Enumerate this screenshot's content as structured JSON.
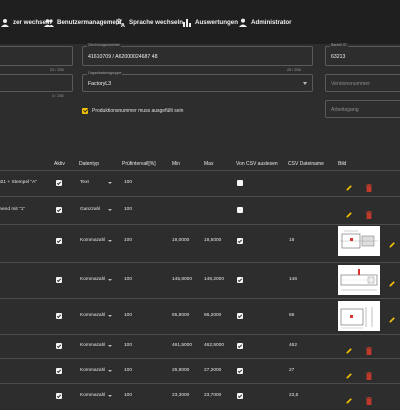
{
  "nav": {
    "items": [
      {
        "label": "zer wechseln",
        "icon": "user-swap-icon"
      },
      {
        "label": "Benutzermanagement",
        "icon": "users-icon"
      },
      {
        "label": "Sprache wechseln",
        "icon": "translate-icon"
      },
      {
        "label": "Auswertungen",
        "icon": "bar-chart-icon"
      },
      {
        "label": "Administrator",
        "icon": "person-icon"
      }
    ]
  },
  "form": {
    "left_counter_1": "22 / 255",
    "left_counter_2": "4 / 255",
    "drawing": {
      "label": "Zeichnungsnummer",
      "value": "41610709 / A62000024687 48",
      "counter": "25 / 255"
    },
    "group": {
      "label": "Organisationsgruppe",
      "value": "FactoryL3"
    },
    "bauteil": {
      "label": "Bauteil ID",
      "value": "63213"
    },
    "version": {
      "placeholder": "Versionsnummer"
    },
    "arbeitsgang": {
      "placeholder": "Arbeitsgang"
    },
    "production_check_label": "Produktionsnummer muss ausgefüllt sein"
  },
  "table": {
    "headers": {
      "aktiv": "Aktiv",
      "datentyp": "Datentyp",
      "interval": "Prüfintervall[%]",
      "min": "Min",
      "max": "Max",
      "csv": "Von CSV auslesen",
      "csvname": "CSV Dateiname",
      "bild": "Bild"
    },
    "rows": [
      {
        "name": "021 + Stempel \"A\"",
        "aktiv": true,
        "type": "Text",
        "interval": "100",
        "min": "",
        "max": "",
        "csv": false,
        "csvname": "",
        "image": false
      },
      {
        "name": "mend mit \"1\"",
        "aktiv": true,
        "type": "Ganzzahl",
        "interval": "100",
        "min": "",
        "max": "",
        "csv": false,
        "csvname": "",
        "image": false
      },
      {
        "name": "",
        "aktiv": true,
        "type": "Kommazahl",
        "interval": "100",
        "min": "18,0000",
        "max": "18,5000",
        "csv": true,
        "csvname": "18",
        "image": true
      },
      {
        "name": "",
        "aktiv": true,
        "type": "Kommazahl",
        "interval": "100",
        "min": "145,8000",
        "max": "146,2000",
        "csv": true,
        "csvname": "146",
        "image": true
      },
      {
        "name": "",
        "aktiv": true,
        "type": "Kommazahl",
        "interval": "100",
        "min": "65,8000",
        "max": "66,2000",
        "csv": true,
        "csvname": "66",
        "image": true
      },
      {
        "name": "",
        "aktiv": true,
        "type": "Kommazahl",
        "interval": "100",
        "min": "461,5000",
        "max": "462,5000",
        "csv": true,
        "csvname": "462",
        "image": false
      },
      {
        "name": "",
        "aktiv": true,
        "type": "Kommazahl",
        "interval": "100",
        "min": "26,8000",
        "max": "27,2000",
        "csv": true,
        "csvname": "27",
        "image": false
      },
      {
        "name": "",
        "aktiv": true,
        "type": "Kommazahl",
        "interval": "100",
        "min": "23,3000",
        "max": "23,7000",
        "csv": true,
        "csvname": "23,5",
        "image": false
      }
    ]
  },
  "colors": {
    "accent": "#f2c200",
    "delete": "#c0392b",
    "background": "#2d2d2d",
    "nav": "#1f1f1f"
  }
}
